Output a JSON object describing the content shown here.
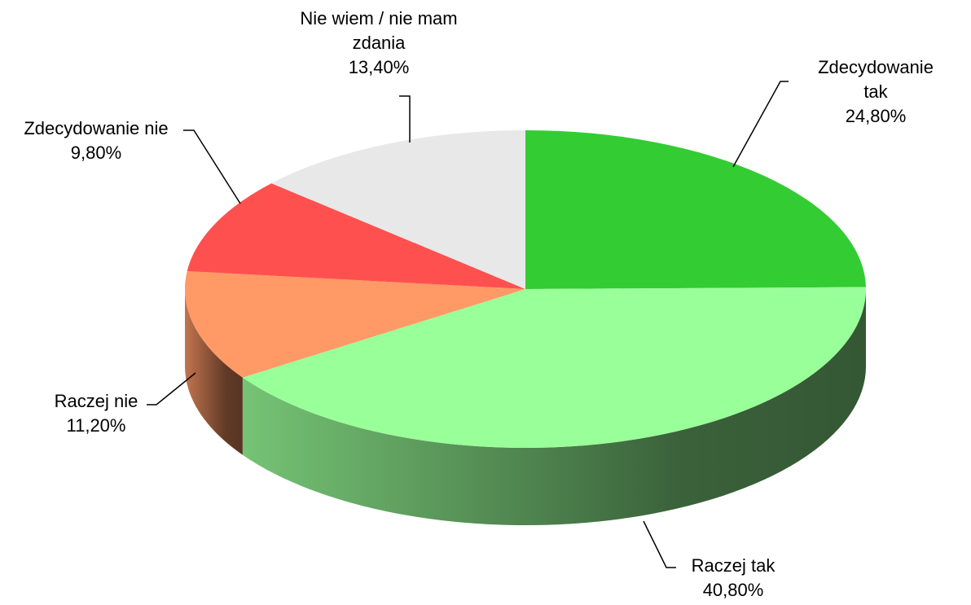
{
  "chart_data": {
    "type": "pie3d",
    "categories": [
      "Zdecydowanie tak",
      "Raczej tak",
      "Raczej nie",
      "Zdecydowanie nie",
      "Nie wiem / nie mam zdania"
    ],
    "values": [
      24.8,
      40.8,
      11.2,
      9.8,
      13.4
    ],
    "value_labels": [
      "24,80%",
      "40,80%",
      "11,20%",
      "9,80%",
      "13,40%"
    ],
    "colors": [
      "#33cc33",
      "#99ff99",
      "#ff9966",
      "#ff5050",
      "#e8e8e8"
    ]
  }
}
